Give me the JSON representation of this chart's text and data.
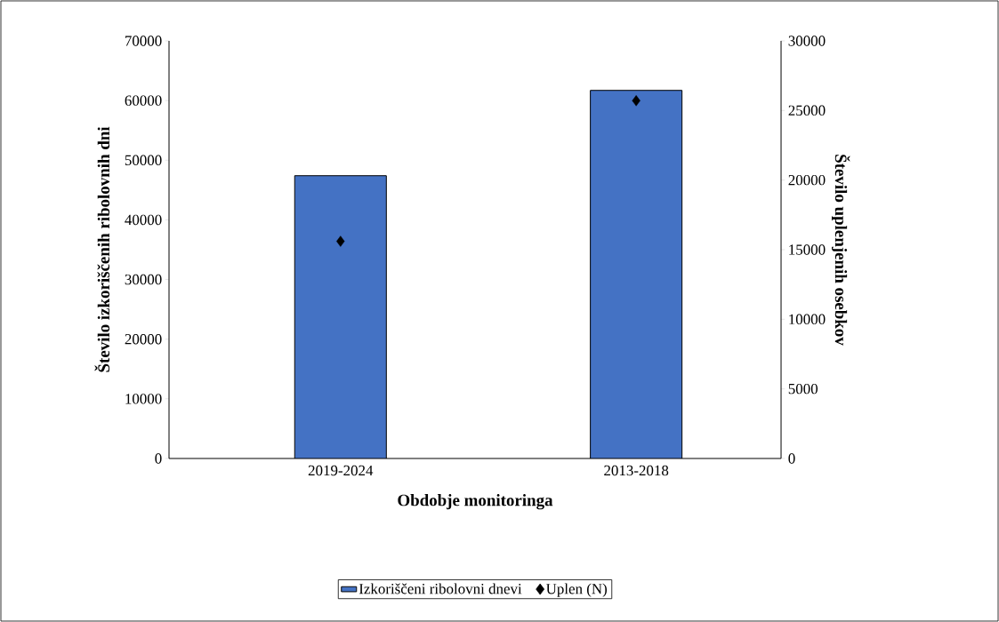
{
  "chart_data": {
    "type": "bar",
    "xlabel": "Obdobje monitoringa",
    "ylabel": "Število izkoriščenih ribolovnih dni",
    "y2label": "Število uplenjenih osebkov",
    "categories": [
      "2019-2024",
      "2013-2018"
    ],
    "series": [
      {
        "name": "Izkoriščeni ribolovni dnevi",
        "color": "#4472c4",
        "values": [
          47400,
          61700
        ]
      },
      {
        "name": "Uplen (N)",
        "type": "scatter",
        "axis": "y2",
        "marker": "diamond",
        "color": "#000000",
        "values": [
          15600,
          25700
        ]
      }
    ],
    "ylim": [
      0,
      70000
    ],
    "yticks": [
      0,
      10000,
      20000,
      30000,
      40000,
      50000,
      60000,
      70000
    ],
    "y2lim": [
      0,
      30000
    ],
    "y2ticks": [
      0,
      5000,
      10000,
      15000,
      20000,
      25000,
      30000
    ],
    "legend": "bottom",
    "grid": false
  }
}
